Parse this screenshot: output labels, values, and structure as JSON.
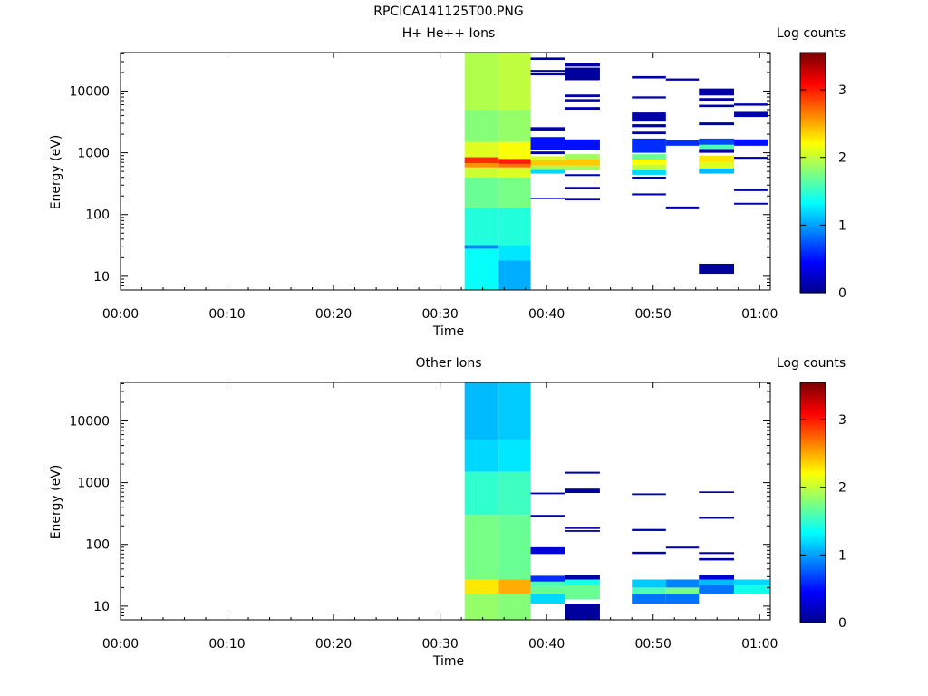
{
  "figure": {
    "title": "RPCICA141125T00.PNG"
  },
  "colors": {
    "colormap": [
      "#00008f",
      "#0000ff",
      "#007fff",
      "#00ffff",
      "#7fff7f",
      "#ffff00",
      "#ff7f00",
      "#ff0000",
      "#7f0000"
    ],
    "axis": "#000000",
    "background": "#ffffff"
  },
  "chart_data": [
    {
      "type": "heatmap",
      "title": "H+ He++ Ions",
      "xlabel": "Time",
      "ylabel": "Energy (eV)",
      "x_ticks": [
        "00:00",
        "00:10",
        "00:20",
        "00:30",
        "00:40",
        "00:50",
        "01:00"
      ],
      "x_range_minutes": [
        0,
        61
      ],
      "y_scale": "log",
      "y_ticks": [
        "10",
        "100",
        "1000",
        "10000"
      ],
      "y_range_eV": [
        6,
        42000
      ],
      "colorbar": {
        "label": "Log counts",
        "min": 0,
        "max": 3.55,
        "ticks": [
          "0",
          "1",
          "2",
          "3"
        ]
      },
      "columns": [
        {
          "t0": 32.3,
          "t1": 35.5,
          "bins": [
            {
              "e0": 6,
              "e1": 28,
              "v": 1.35
            },
            {
              "e0": 28,
              "e1": 32,
              "v": 0.9
            },
            {
              "e0": 32,
              "e1": 130,
              "v": 1.45
            },
            {
              "e0": 130,
              "e1": 400,
              "v": 1.7
            },
            {
              "e0": 400,
              "e1": 580,
              "v": 2.05
            },
            {
              "e0": 580,
              "e1": 680,
              "v": 2.6
            },
            {
              "e0": 680,
              "e1": 850,
              "v": 2.95
            },
            {
              "e0": 850,
              "e1": 1500,
              "v": 2.1
            },
            {
              "e0": 1500,
              "e1": 5000,
              "v": 1.8
            },
            {
              "e0": 5000,
              "e1": 42000,
              "v": 1.95
            }
          ]
        },
        {
          "t0": 35.5,
          "t1": 38.5,
          "bins": [
            {
              "e0": 6,
              "e1": 18,
              "v": 1.05
            },
            {
              "e0": 18,
              "e1": 32,
              "v": 1.25
            },
            {
              "e0": 32,
              "e1": 130,
              "v": 1.45
            },
            {
              "e0": 130,
              "e1": 400,
              "v": 1.75
            },
            {
              "e0": 400,
              "e1": 580,
              "v": 2.1
            },
            {
              "e0": 580,
              "e1": 660,
              "v": 2.7
            },
            {
              "e0": 660,
              "e1": 800,
              "v": 3.0
            },
            {
              "e0": 800,
              "e1": 1500,
              "v": 2.2
            },
            {
              "e0": 1500,
              "e1": 5000,
              "v": 1.85
            },
            {
              "e0": 5000,
              "e1": 42000,
              "v": 2.0
            }
          ]
        },
        {
          "t0": 38.5,
          "t1": 41.7,
          "bins": [
            {
              "e0": 178,
              "e1": 188,
              "v": 0.1
            },
            {
              "e0": 460,
              "e1": 530,
              "v": 1.2
            },
            {
              "e0": 530,
              "e1": 620,
              "v": 1.9
            },
            {
              "e0": 620,
              "e1": 760,
              "v": 2.4
            },
            {
              "e0": 760,
              "e1": 880,
              "v": 2.1
            },
            {
              "e0": 950,
              "e1": 1050,
              "v": 0.2
            },
            {
              "e0": 1100,
              "e1": 1800,
              "v": 0.5
            },
            {
              "e0": 2300,
              "e1": 2600,
              "v": 0.1
            },
            {
              "e0": 18000,
              "e1": 19500,
              "v": 0.1
            },
            {
              "e0": 20500,
              "e1": 22000,
              "v": 0.1
            },
            {
              "e0": 32000,
              "e1": 35000,
              "v": 0.1
            }
          ]
        },
        {
          "t0": 41.7,
          "t1": 45.0,
          "bins": [
            {
              "e0": 170,
              "e1": 180,
              "v": 0.1
            },
            {
              "e0": 260,
              "e1": 280,
              "v": 0.1
            },
            {
              "e0": 420,
              "e1": 450,
              "v": 0.2
            },
            {
              "e0": 520,
              "e1": 620,
              "v": 1.9
            },
            {
              "e0": 620,
              "e1": 800,
              "v": 2.4
            },
            {
              "e0": 800,
              "e1": 950,
              "v": 1.9
            },
            {
              "e0": 1100,
              "e1": 1650,
              "v": 0.5
            },
            {
              "e0": 5000,
              "e1": 5500,
              "v": 0.1
            },
            {
              "e0": 6800,
              "e1": 7400,
              "v": 0.1
            },
            {
              "e0": 8000,
              "e1": 8800,
              "v": 0.1
            },
            {
              "e0": 15000,
              "e1": 24000,
              "v": 0.05
            },
            {
              "e0": 25000,
              "e1": 28000,
              "v": 0.1
            }
          ]
        },
        {
          "t0": 48.0,
          "t1": 51.2,
          "bins": [
            {
              "e0": 205,
              "e1": 220,
              "v": 0.1
            },
            {
              "e0": 380,
              "e1": 410,
              "v": 0.2
            },
            {
              "e0": 440,
              "e1": 520,
              "v": 1.2
            },
            {
              "e0": 520,
              "e1": 640,
              "v": 2.0
            },
            {
              "e0": 640,
              "e1": 780,
              "v": 2.2
            },
            {
              "e0": 780,
              "e1": 950,
              "v": 1.7
            },
            {
              "e0": 1000,
              "e1": 1700,
              "v": 0.6
            },
            {
              "e0": 2000,
              "e1": 2200,
              "v": 0.1
            },
            {
              "e0": 2600,
              "e1": 2900,
              "v": 0.1
            },
            {
              "e0": 3200,
              "e1": 4500,
              "v": 0.1
            },
            {
              "e0": 7600,
              "e1": 8200,
              "v": 0.1
            },
            {
              "e0": 16000,
              "e1": 17500,
              "v": 0.1
            }
          ]
        },
        {
          "t0": 51.2,
          "t1": 54.3,
          "bins": [
            {
              "e0": 122,
              "e1": 135,
              "v": 0.1
            },
            {
              "e0": 1300,
              "e1": 1600,
              "v": 0.6
            },
            {
              "e0": 14800,
              "e1": 16000,
              "v": 0.1
            }
          ]
        },
        {
          "t0": 54.3,
          "t1": 57.6,
          "bins": [
            {
              "e0": 11,
              "e1": 16,
              "v": 0.05
            },
            {
              "e0": 460,
              "e1": 560,
              "v": 1.1
            },
            {
              "e0": 560,
              "e1": 700,
              "v": 2.1
            },
            {
              "e0": 700,
              "e1": 900,
              "v": 2.3
            },
            {
              "e0": 1000,
              "e1": 1150,
              "v": 0.1
            },
            {
              "e0": 1150,
              "e1": 1350,
              "v": 1.6
            },
            {
              "e0": 1350,
              "e1": 1700,
              "v": 0.7
            },
            {
              "e0": 2800,
              "e1": 3100,
              "v": 0.1
            },
            {
              "e0": 5500,
              "e1": 6000,
              "v": 0.1
            },
            {
              "e0": 7000,
              "e1": 7700,
              "v": 0.1
            },
            {
              "e0": 8500,
              "e1": 11000,
              "v": 0.1
            }
          ]
        },
        {
          "t0": 57.6,
          "t1": 60.8,
          "bins": [
            {
              "e0": 145,
              "e1": 155,
              "v": 0.1
            },
            {
              "e0": 240,
              "e1": 260,
              "v": 0.1
            },
            {
              "e0": 800,
              "e1": 860,
              "v": 0.1
            },
            {
              "e0": 1300,
              "e1": 1650,
              "v": 0.5
            },
            {
              "e0": 3800,
              "e1": 4600,
              "v": 0.1
            },
            {
              "e0": 5800,
              "e1": 6300,
              "v": 0.1
            }
          ]
        }
      ]
    },
    {
      "type": "heatmap",
      "title": "Other Ions",
      "xlabel": "Time",
      "ylabel": "Energy (eV)",
      "x_ticks": [
        "00:00",
        "00:10",
        "00:20",
        "00:30",
        "00:40",
        "00:50",
        "01:00"
      ],
      "x_range_minutes": [
        0,
        61
      ],
      "y_scale": "log",
      "y_ticks": [
        "10",
        "100",
        "1000",
        "10000"
      ],
      "y_range_eV": [
        6,
        42000
      ],
      "colorbar": {
        "label": "Log counts",
        "min": 0,
        "max": 3.55,
        "ticks": [
          "0",
          "1",
          "2",
          "3"
        ]
      },
      "columns": [
        {
          "t0": 32.3,
          "t1": 35.5,
          "bins": [
            {
              "e0": 6,
              "e1": 16,
              "v": 1.85
            },
            {
              "e0": 16,
              "e1": 27,
              "v": 2.3
            },
            {
              "e0": 27,
              "e1": 300,
              "v": 1.75
            },
            {
              "e0": 300,
              "e1": 1500,
              "v": 1.5
            },
            {
              "e0": 1500,
              "e1": 5000,
              "v": 1.2
            },
            {
              "e0": 5000,
              "e1": 42000,
              "v": 1.1
            }
          ]
        },
        {
          "t0": 35.5,
          "t1": 38.5,
          "bins": [
            {
              "e0": 6,
              "e1": 16,
              "v": 1.8
            },
            {
              "e0": 16,
              "e1": 27,
              "v": 2.5
            },
            {
              "e0": 27,
              "e1": 300,
              "v": 1.7
            },
            {
              "e0": 300,
              "e1": 1500,
              "v": 1.55
            },
            {
              "e0": 1500,
              "e1": 5000,
              "v": 1.25
            },
            {
              "e0": 5000,
              "e1": 42000,
              "v": 1.15
            }
          ]
        },
        {
          "t0": 38.5,
          "t1": 41.7,
          "bins": [
            {
              "e0": 11,
              "e1": 16,
              "v": 1.2
            },
            {
              "e0": 16,
              "e1": 21,
              "v": 1.7
            },
            {
              "e0": 21,
              "e1": 25,
              "v": 1.6
            },
            {
              "e0": 25,
              "e1": 31,
              "v": 0.6
            },
            {
              "e0": 70,
              "e1": 90,
              "v": 0.3
            },
            {
              "e0": 280,
              "e1": 300,
              "v": 0.1
            },
            {
              "e0": 650,
              "e1": 690,
              "v": 0.1
            }
          ]
        },
        {
          "t0": 41.7,
          "t1": 45.0,
          "bins": [
            {
              "e0": 6,
              "e1": 11,
              "v": 0.05
            },
            {
              "e0": 13,
              "e1": 22,
              "v": 1.7
            },
            {
              "e0": 22,
              "e1": 27,
              "v": 1.4
            },
            {
              "e0": 27,
              "e1": 32,
              "v": 0.1
            },
            {
              "e0": 160,
              "e1": 170,
              "v": 0.1
            },
            {
              "e0": 178,
              "e1": 188,
              "v": 0.1
            },
            {
              "e0": 680,
              "e1": 800,
              "v": 0.05
            },
            {
              "e0": 1400,
              "e1": 1500,
              "v": 0.1
            }
          ]
        },
        {
          "t0": 48.0,
          "t1": 51.2,
          "bins": [
            {
              "e0": 11,
              "e1": 16,
              "v": 0.85
            },
            {
              "e0": 16,
              "e1": 20,
              "v": 1.6
            },
            {
              "e0": 20,
              "e1": 27,
              "v": 1.15
            },
            {
              "e0": 70,
              "e1": 76,
              "v": 0.1
            },
            {
              "e0": 165,
              "e1": 178,
              "v": 0.1
            },
            {
              "e0": 630,
              "e1": 670,
              "v": 0.1
            }
          ]
        },
        {
          "t0": 51.2,
          "t1": 54.3,
          "bins": [
            {
              "e0": 11,
              "e1": 16,
              "v": 0.85
            },
            {
              "e0": 16,
              "e1": 20,
              "v": 1.75
            },
            {
              "e0": 20,
              "e1": 27,
              "v": 0.9
            },
            {
              "e0": 86,
              "e1": 92,
              "v": 0.1
            }
          ]
        },
        {
          "t0": 54.3,
          "t1": 57.6,
          "bins": [
            {
              "e0": 16,
              "e1": 22,
              "v": 0.85
            },
            {
              "e0": 22,
              "e1": 27,
              "v": 1.1
            },
            {
              "e0": 27,
              "e1": 32,
              "v": 0.3
            },
            {
              "e0": 55,
              "e1": 60,
              "v": 0.1
            },
            {
              "e0": 70,
              "e1": 75,
              "v": 0.1
            },
            {
              "e0": 260,
              "e1": 280,
              "v": 0.1
            },
            {
              "e0": 680,
              "e1": 720,
              "v": 0.1
            }
          ]
        },
        {
          "t0": 57.6,
          "t1": 61.0,
          "bins": [
            {
              "e0": 16,
              "e1": 22,
              "v": 1.4
            },
            {
              "e0": 22,
              "e1": 27,
              "v": 1.2
            }
          ]
        }
      ]
    }
  ]
}
